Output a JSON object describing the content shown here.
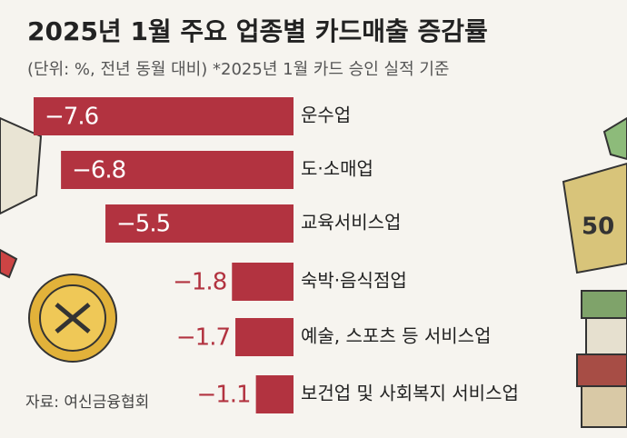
{
  "chart_data": {
    "type": "bar",
    "orientation": "horizontal",
    "title": "2025년 1월 주요 업종별 카드매출 증감률",
    "subtitle": "(단위: %, 전년 동월 대비)  *2025년 1월 카드 승인 실적 기준",
    "source": "자료: 여신금융협회",
    "categories": [
      "운수업",
      "도·소매업",
      "교육서비스업",
      "숙박·음식점업",
      "예술, 스포츠 등 서비스업",
      "보건업 및 사회복지 서비스업"
    ],
    "values": [
      -7.6,
      -6.8,
      -5.5,
      -1.8,
      -1.7,
      -1.1
    ],
    "value_labels": [
      "−7.6",
      "−6.8",
      "−5.5",
      "−1.8",
      "−1.7",
      "−1.1"
    ],
    "color": "#b23340"
  }
}
